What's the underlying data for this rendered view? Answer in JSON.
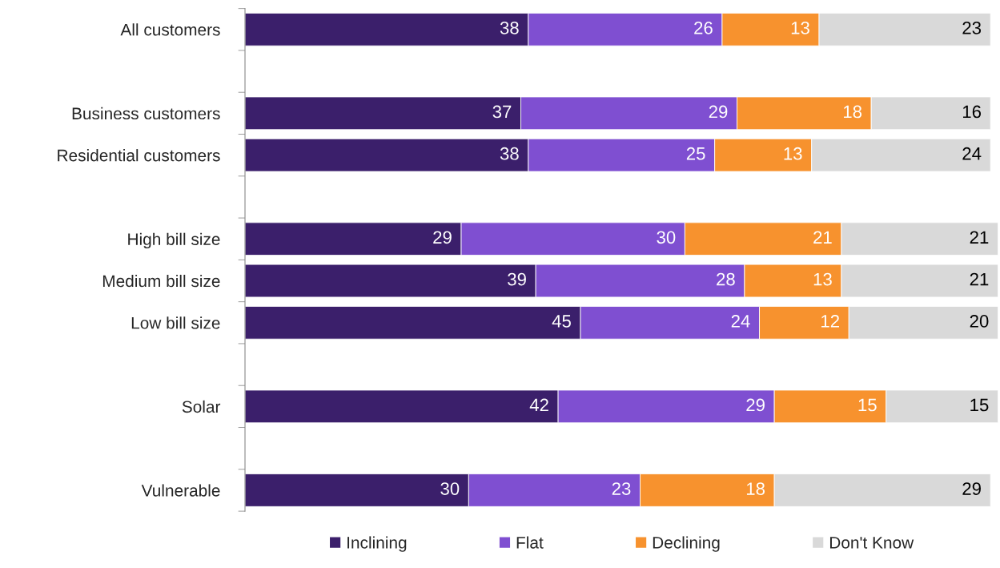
{
  "chart_data": {
    "type": "bar",
    "orientation": "horizontal",
    "stacked": true,
    "data_labels": true,
    "legend": "bottom",
    "grid": false,
    "tick_labels": "y",
    "xlim": [
      0,
      101
    ],
    "categories": [
      "All customers",
      null,
      "Business customers",
      "Residential customers",
      null,
      "High bill size",
      "Medium bill size",
      "Low bill size",
      null,
      "Solar",
      null,
      "Vulnerable"
    ],
    "series": [
      {
        "name": "Inclining",
        "color": "#3b1f6b",
        "values": [
          38,
          null,
          37,
          38,
          null,
          29,
          39,
          45,
          null,
          42,
          null,
          30
        ]
      },
      {
        "name": "Flat",
        "color": "#7f4fd1",
        "values": [
          26,
          null,
          29,
          25,
          null,
          30,
          28,
          24,
          null,
          29,
          null,
          23
        ]
      },
      {
        "name": "Declining",
        "color": "#f7922e",
        "values": [
          13,
          null,
          18,
          13,
          null,
          21,
          13,
          12,
          null,
          15,
          null,
          18
        ]
      },
      {
        "name": "Don't Know",
        "color": "#d9d9d9",
        "values": [
          23,
          null,
          16,
          24,
          null,
          21,
          21,
          20,
          null,
          15,
          null,
          29
        ]
      }
    ]
  }
}
